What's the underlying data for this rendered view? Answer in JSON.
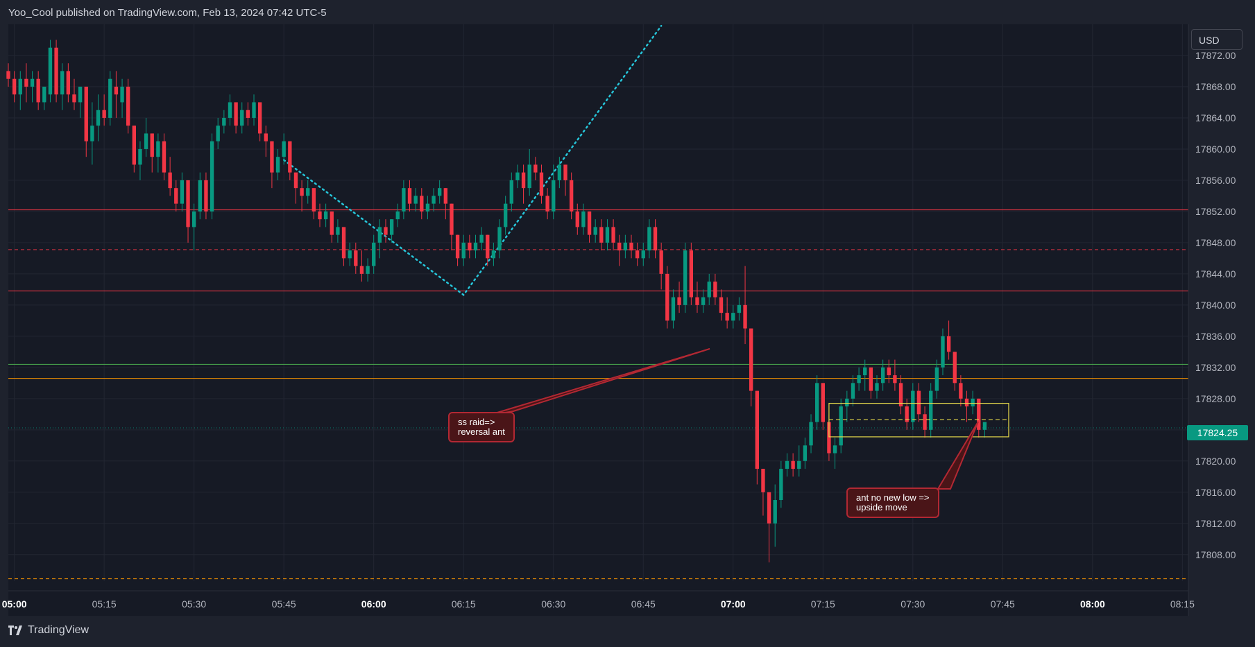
{
  "header": {
    "published": "Yoo_Cool published on TradingView.com, Feb 13, 2024 07:42 UTC-5"
  },
  "currency_button": "USD",
  "last_price_label": "17824.25",
  "brand": {
    "name": "TradingView"
  },
  "annotations": [
    {
      "text": "ss raid=>\nreversal ant"
    },
    {
      "text": "ant no new low =>\nupside move"
    }
  ],
  "colors": {
    "background": "#161a25",
    "up": "#089981",
    "down": "#f23645",
    "grid": "#222632",
    "axis_text": "#b2b5be",
    "pattern": "#26c6da",
    "box": "#e6d94b",
    "level_red": "#f23645",
    "level_green": "#4caf50",
    "level_orange": "#ff9800"
  },
  "chart_data": {
    "type": "candlestick",
    "symbol_currency": "USD",
    "x_ticks": [
      {
        "label": "05:00",
        "bold": true
      },
      {
        "label": "05:15"
      },
      {
        "label": "05:30"
      },
      {
        "label": "05:45"
      },
      {
        "label": "06:00",
        "bold": true
      },
      {
        "label": "06:15"
      },
      {
        "label": "06:30"
      },
      {
        "label": "06:45"
      },
      {
        "label": "07:00",
        "bold": true
      },
      {
        "label": "07:15"
      },
      {
        "label": "07:30"
      },
      {
        "label": "07:45"
      },
      {
        "label": "08:00",
        "bold": true
      },
      {
        "label": "08:15"
      }
    ],
    "y_ticks": [
      "17872.00",
      "17868.00",
      "17864.00",
      "17860.00",
      "17856.00",
      "17852.00",
      "17848.00",
      "17844.00",
      "17840.00",
      "17836.00",
      "17832.00",
      "17828.00",
      "17824.00",
      "17820.00",
      "17816.00",
      "17812.00",
      "17808.00"
    ],
    "y_tick_values": [
      17872,
      17868,
      17864,
      17860,
      17856,
      17852,
      17848,
      17844,
      17840,
      17836,
      17832,
      17828,
      17824,
      17820,
      17816,
      17812,
      17808
    ],
    "ylim": [
      17804.6,
      17876.0
    ],
    "x_range_minutes": [
      "04:59",
      "08:16"
    ],
    "last_price": 17824.25,
    "levels": [
      {
        "price": 17852.2,
        "color": "#f23645",
        "style": "solid"
      },
      {
        "price": 17847.1,
        "color": "#f23645",
        "style": "dashed"
      },
      {
        "price": 17841.8,
        "color": "#f23645",
        "style": "solid"
      },
      {
        "price": 17832.4,
        "color": "#4caf50",
        "style": "solid"
      },
      {
        "price": 17830.6,
        "color": "#ff9800",
        "style": "solid"
      },
      {
        "price": 17804.9,
        "color": "#ff9800",
        "style": "dashed"
      },
      {
        "price": 17824.25,
        "color": "#089981",
        "style": "dotted"
      }
    ],
    "pattern_line": [
      {
        "time": "05:45",
        "price": 17858.6
      },
      {
        "time": "06:15",
        "price": 17841.3
      },
      {
        "time": "06:48",
        "price": 17875.8
      }
    ],
    "box": {
      "time_start": "07:16",
      "time_end": "07:46",
      "price_top": 17827.4,
      "price_bottom": 17823.1,
      "mid_price": 17825.3
    },
    "candles": [
      [
        17870,
        17871,
        17868,
        17869
      ],
      [
        17869,
        17870,
        17866,
        17867
      ],
      [
        17867,
        17870,
        17865,
        17869
      ],
      [
        17869,
        17871,
        17866,
        17868
      ],
      [
        17868,
        17870,
        17866,
        17869
      ],
      [
        17869,
        17870,
        17865,
        17866
      ],
      [
        17866,
        17868,
        17865,
        17868
      ],
      [
        17867,
        17874,
        17866,
        17873
      ],
      [
        17873,
        17874,
        17866,
        17867
      ],
      [
        17867,
        17871,
        17865,
        17870
      ],
      [
        17870,
        17871,
        17866,
        17867
      ],
      [
        17867,
        17869,
        17865,
        17866
      ],
      [
        17866,
        17868,
        17864,
        17868
      ],
      [
        17868,
        17868,
        17859,
        17861
      ],
      [
        17861,
        17866,
        17858,
        17863
      ],
      [
        17863,
        17867,
        17861,
        17865
      ],
      [
        17865,
        17867,
        17863,
        17864
      ],
      [
        17864,
        17870,
        17863,
        17869
      ],
      [
        17868,
        17870,
        17864,
        17867
      ],
      [
        17866,
        17869,
        17864,
        17868
      ],
      [
        17868,
        17869,
        17862,
        17863
      ],
      [
        17863,
        17863,
        17857,
        17858
      ],
      [
        17858,
        17861,
        17856,
        17860
      ],
      [
        17860,
        17864,
        17859,
        17862
      ],
      [
        17862,
        17862,
        17857,
        17859
      ],
      [
        17859,
        17862,
        17857,
        17861
      ],
      [
        17861,
        17862,
        17856,
        17857
      ],
      [
        17857,
        17859,
        17854,
        17855
      ],
      [
        17855,
        17856,
        17852,
        17853
      ],
      [
        17853,
        17857,
        17852,
        17856
      ],
      [
        17856,
        17856,
        17848,
        17850
      ],
      [
        17850,
        17853,
        17847,
        17852
      ],
      [
        17852,
        17857,
        17851,
        17856
      ],
      [
        17856,
        17857,
        17851,
        17852
      ],
      [
        17852,
        17862,
        17851,
        17861
      ],
      [
        17861,
        17864,
        17860,
        17863
      ],
      [
        17863,
        17865,
        17862,
        17864
      ],
      [
        17864,
        17867,
        17863,
        17866
      ],
      [
        17866,
        17866,
        17862,
        17863
      ],
      [
        17863,
        17866,
        17862,
        17865
      ],
      [
        17865,
        17866,
        17863,
        17864
      ],
      [
        17864,
        17867,
        17863,
        17866
      ],
      [
        17866,
        17866,
        17861,
        17862
      ],
      [
        17862,
        17863,
        17859,
        17861
      ],
      [
        17861,
        17861,
        17855,
        17857
      ],
      [
        17857,
        17860,
        17856,
        17859
      ],
      [
        17859,
        17862,
        17858,
        17861
      ],
      [
        17861,
        17861,
        17856,
        17857
      ],
      [
        17857,
        17857,
        17853,
        17855
      ],
      [
        17855,
        17856,
        17852,
        17854
      ],
      [
        17854,
        17856,
        17853,
        17855
      ],
      [
        17855,
        17855,
        17851,
        17852
      ],
      [
        17852,
        17853,
        17850,
        17851
      ],
      [
        17851,
        17853,
        17850,
        17852
      ],
      [
        17852,
        17852,
        17848,
        17849
      ],
      [
        17849,
        17851,
        17848,
        17850
      ],
      [
        17850,
        17850,
        17845,
        17846
      ],
      [
        17846,
        17848,
        17845,
        17847
      ],
      [
        17847,
        17848,
        17844,
        17845
      ],
      [
        17845,
        17847,
        17843,
        17844
      ],
      [
        17844,
        17846,
        17843,
        17845
      ],
      [
        17845,
        17849,
        17844,
        17848
      ],
      [
        17848,
        17851,
        17846,
        17850
      ],
      [
        17850,
        17851,
        17848,
        17849
      ],
      [
        17849,
        17851,
        17848,
        17851
      ],
      [
        17851,
        17853,
        17850,
        17852
      ],
      [
        17852,
        17856,
        17851,
        17855
      ],
      [
        17855,
        17856,
        17852,
        17853
      ],
      [
        17853,
        17855,
        17852,
        17854
      ],
      [
        17854,
        17855,
        17851,
        17852
      ],
      [
        17852,
        17854,
        17851,
        17853
      ],
      [
        17853,
        17855,
        17852,
        17854
      ],
      [
        17854,
        17856,
        17853,
        17855
      ],
      [
        17855,
        17855,
        17851,
        17853
      ],
      [
        17853,
        17853,
        17847,
        17849
      ],
      [
        17849,
        17849,
        17845,
        17846
      ],
      [
        17846,
        17849,
        17845,
        17848
      ],
      [
        17848,
        17849,
        17846,
        17847
      ],
      [
        17847,
        17849,
        17846,
        17848
      ],
      [
        17848,
        17850,
        17847,
        17849
      ],
      [
        17849,
        17849,
        17845,
        17846
      ],
      [
        17846,
        17848,
        17845,
        17847
      ],
      [
        17847,
        17851,
        17846,
        17850
      ],
      [
        17850,
        17854,
        17849,
        17853
      ],
      [
        17853,
        17857,
        17852,
        17856
      ],
      [
        17856,
        17858,
        17855,
        17857
      ],
      [
        17857,
        17858,
        17853,
        17855
      ],
      [
        17855,
        17860,
        17854,
        17858
      ],
      [
        17858,
        17859,
        17856,
        17857
      ],
      [
        17857,
        17858,
        17853,
        17854
      ],
      [
        17854,
        17855,
        17851,
        17852
      ],
      [
        17852,
        17858,
        17851,
        17856
      ],
      [
        17856,
        17859,
        17855,
        17858
      ],
      [
        17858,
        17858,
        17854,
        17856
      ],
      [
        17856,
        17857,
        17851,
        17852
      ],
      [
        17852,
        17853,
        17849,
        17850
      ],
      [
        17850,
        17853,
        17849,
        17852
      ],
      [
        17852,
        17852,
        17848,
        17849
      ],
      [
        17849,
        17851,
        17848,
        17850
      ],
      [
        17850,
        17851,
        17847,
        17848
      ],
      [
        17848,
        17851,
        17847,
        17850
      ],
      [
        17850,
        17851,
        17847,
        17848
      ],
      [
        17848,
        17849,
        17845,
        17847
      ],
      [
        17847,
        17849,
        17846,
        17848
      ],
      [
        17848,
        17849,
        17846,
        17847
      ],
      [
        17847,
        17848,
        17845,
        17846
      ],
      [
        17846,
        17848,
        17845,
        17847
      ],
      [
        17847,
        17851,
        17846,
        17850
      ],
      [
        17850,
        17851,
        17846,
        17847
      ],
      [
        17847,
        17848,
        17842,
        17844
      ],
      [
        17844,
        17845,
        17837,
        17838
      ],
      [
        17838,
        17842,
        17837,
        17841
      ],
      [
        17841,
        17843,
        17839,
        17840
      ],
      [
        17840,
        17848,
        17839,
        17847
      ],
      [
        17847,
        17848,
        17840,
        17841
      ],
      [
        17841,
        17843,
        17839,
        17840
      ],
      [
        17840,
        17842,
        17839,
        17841
      ],
      [
        17841,
        17844,
        17840,
        17843
      ],
      [
        17843,
        17844,
        17840,
        17841
      ],
      [
        17841,
        17842,
        17838,
        17839
      ],
      [
        17839,
        17841,
        17837,
        17838
      ],
      [
        17838,
        17840,
        17837,
        17839
      ],
      [
        17839,
        17841,
        17838,
        17840
      ],
      [
        17840,
        17845,
        17835,
        17837
      ],
      [
        17837,
        17837,
        17827,
        17829
      ],
      [
        17829,
        17829,
        17817,
        17819
      ],
      [
        17819,
        17819,
        17813,
        17816
      ],
      [
        17816,
        17816,
        17807,
        17812
      ],
      [
        17812,
        17817,
        17809,
        17815
      ],
      [
        17815,
        17820,
        17814,
        17819
      ],
      [
        17819,
        17821,
        17818,
        17820
      ],
      [
        17820,
        17821,
        17818,
        17819
      ],
      [
        17819,
        17822,
        17818,
        17820
      ],
      [
        17820,
        17823,
        17819,
        17822
      ],
      [
        17822,
        17826,
        17821,
        17825
      ],
      [
        17825,
        17831,
        17824,
        17830
      ],
      [
        17830,
        17830,
        17824,
        17825
      ],
      [
        17825,
        17826,
        17820,
        17821
      ],
      [
        17821,
        17823,
        17819,
        17822
      ],
      [
        17822,
        17828,
        17821,
        17827
      ],
      [
        17827,
        17829,
        17825,
        17828
      ],
      [
        17828,
        17831,
        17827,
        17830
      ],
      [
        17830,
        17832,
        17829,
        17831
      ],
      [
        17831,
        17833,
        17829,
        17832
      ],
      [
        17832,
        17832,
        17828,
        17829
      ],
      [
        17829,
        17831,
        17828,
        17830
      ],
      [
        17830,
        17833,
        17829,
        17832
      ],
      [
        17832,
        17833,
        17830,
        17831
      ],
      [
        17831,
        17833,
        17829,
        17830
      ],
      [
        17830,
        17831,
        17826,
        17827
      ],
      [
        17827,
        17828,
        17824,
        17825
      ],
      [
        17825,
        17830,
        17824,
        17829
      ],
      [
        17829,
        17830,
        17825,
        17826
      ],
      [
        17826,
        17827,
        17823,
        17824
      ],
      [
        17824,
        17830,
        17823,
        17829
      ],
      [
        17829,
        17833,
        17828,
        17832
      ],
      [
        17832,
        17837,
        17831,
        17836
      ],
      [
        17836,
        17838,
        17833,
        17834
      ],
      [
        17834,
        17834,
        17829,
        17830
      ],
      [
        17830,
        17831,
        17827,
        17828
      ],
      [
        17828,
        17829,
        17825,
        17827
      ],
      [
        17827,
        17829,
        17826,
        17828
      ],
      [
        17828,
        17828,
        17823,
        17824
      ],
      [
        17824,
        17825,
        17823,
        17825
      ]
    ]
  }
}
